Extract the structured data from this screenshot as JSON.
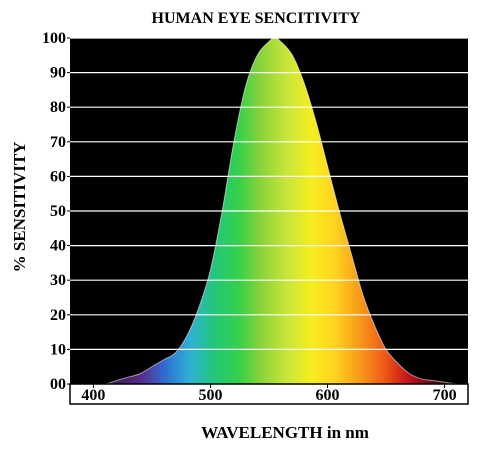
{
  "chart_data": {
    "type": "area",
    "title": "HUMAN EYE SENCITIVITY",
    "xlabel": "WAVELENGTH in nm",
    "ylabel": "% SENSITIVITY",
    "xlim": [
      380,
      720
    ],
    "ylim": [
      0,
      100
    ],
    "x_ticks": [
      "400",
      "500",
      "600",
      "700"
    ],
    "y_ticks": [
      "00",
      "10",
      "20",
      "30",
      "40",
      "50",
      "60",
      "70",
      "80",
      "90",
      "100"
    ],
    "grid": true,
    "series": [
      {
        "x": [
          400,
          410,
          420,
          430,
          440,
          450,
          460,
          470,
          480,
          490,
          500,
          510,
          520,
          530,
          540,
          550,
          555,
          560,
          570,
          580,
          590,
          600,
          610,
          620,
          630,
          640,
          650,
          660,
          670,
          680,
          690,
          700,
          710
        ],
        "values": [
          0,
          0,
          1,
          2,
          3,
          5,
          7,
          9,
          14,
          22,
          33,
          50,
          70,
          86,
          95,
          99,
          100,
          99,
          95,
          87,
          76,
          63,
          50,
          38,
          26,
          17,
          10,
          6,
          3,
          1.5,
          1,
          0.5,
          0
        ]
      }
    ],
    "colors": {
      "plot_background": "#000000",
      "gridlines": "#ffffff",
      "curve_outline": "#ffffff",
      "spectrum": [
        "#3a1f5e",
        "#5a2a8a",
        "#2f6fd1",
        "#2fb0d6",
        "#21c77a",
        "#35d04a",
        "#8fd43a",
        "#c8e63a",
        "#f5ee1f",
        "#ffd21f",
        "#f79a1a",
        "#ef5a14",
        "#c2121c",
        "#5e0a12"
      ]
    }
  }
}
